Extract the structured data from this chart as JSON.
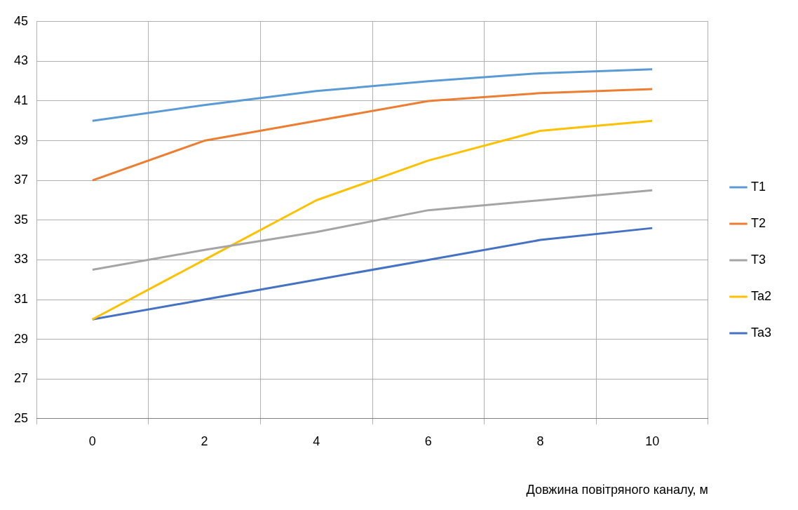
{
  "chart_data": {
    "type": "line",
    "xlabel": "Довжина повітряного каналу, м",
    "categories": [
      "0",
      "2",
      "4",
      "6",
      "8",
      "10"
    ],
    "ylim": [
      25,
      45
    ],
    "yticks": [
      25,
      27,
      29,
      31,
      33,
      35,
      37,
      39,
      41,
      43,
      45
    ],
    "grid": true,
    "legend": "right",
    "marker": "none",
    "line_style": "solid",
    "series": [
      {
        "name": "T1",
        "color": "#5b9bd5",
        "values": [
          40,
          40.8,
          41.5,
          42,
          42.4,
          42.6
        ]
      },
      {
        "name": "T2",
        "color": "#ed7d31",
        "values": [
          37,
          39,
          40,
          41,
          41.4,
          41.6
        ]
      },
      {
        "name": "T3",
        "color": "#a5a5a5",
        "values": [
          32.5,
          33.5,
          34.4,
          35.5,
          36,
          36.5
        ]
      },
      {
        "name": "Ta2",
        "color": "#ffc000",
        "values": [
          30,
          33,
          36,
          38,
          39.5,
          40
        ]
      },
      {
        "name": "Ta3",
        "color": "#4472c4",
        "values": [
          30,
          31,
          32,
          33,
          34,
          34.6
        ]
      }
    ]
  }
}
